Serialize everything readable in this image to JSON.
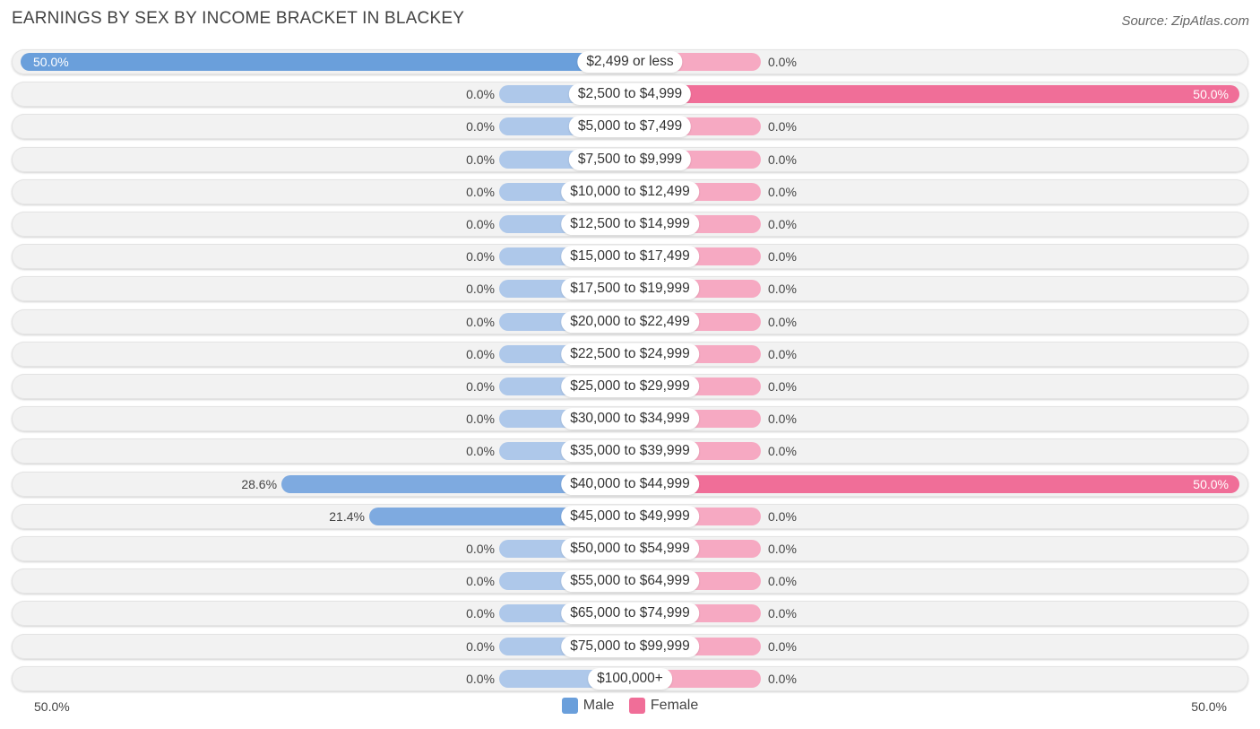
{
  "title": "EARNINGS BY SEX BY INCOME BRACKET IN BLACKEY",
  "source": "Source: ZipAtlas.com",
  "colors": {
    "male_light": "#aec8ea",
    "male_strong": "#6a9fdb",
    "female_light": "#f6a9c2",
    "female_strong": "#f06e98",
    "row_background": "#f2f2f2"
  },
  "chart_data": {
    "type": "bar",
    "orientation": "horizontal-diverging",
    "categories": [
      "$2,499 or less",
      "$2,500 to $4,999",
      "$5,000 to $7,499",
      "$7,500 to $9,999",
      "$10,000 to $12,499",
      "$12,500 to $14,999",
      "$15,000 to $17,499",
      "$17,500 to $19,999",
      "$20,000 to $22,499",
      "$22,500 to $24,999",
      "$25,000 to $29,999",
      "$30,000 to $34,999",
      "$35,000 to $39,999",
      "$40,000 to $44,999",
      "$45,000 to $49,999",
      "$50,000 to $54,999",
      "$55,000 to $64,999",
      "$65,000 to $74,999",
      "$75,000 to $99,999",
      "$100,000+"
    ],
    "series": [
      {
        "name": "Male",
        "values": [
          50.0,
          0.0,
          0.0,
          0.0,
          0.0,
          0.0,
          0.0,
          0.0,
          0.0,
          0.0,
          0.0,
          0.0,
          0.0,
          28.6,
          21.4,
          0.0,
          0.0,
          0.0,
          0.0,
          0.0
        ],
        "labels": [
          "50.0%",
          "0.0%",
          "0.0%",
          "0.0%",
          "0.0%",
          "0.0%",
          "0.0%",
          "0.0%",
          "0.0%",
          "0.0%",
          "0.0%",
          "0.0%",
          "0.0%",
          "28.6%",
          "21.4%",
          "0.0%",
          "0.0%",
          "0.0%",
          "0.0%",
          "0.0%"
        ]
      },
      {
        "name": "Female",
        "values": [
          0.0,
          50.0,
          0.0,
          0.0,
          0.0,
          0.0,
          0.0,
          0.0,
          0.0,
          0.0,
          0.0,
          0.0,
          0.0,
          50.0,
          0.0,
          0.0,
          0.0,
          0.0,
          0.0,
          0.0
        ],
        "labels": [
          "0.0%",
          "50.0%",
          "0.0%",
          "0.0%",
          "0.0%",
          "0.0%",
          "0.0%",
          "0.0%",
          "0.0%",
          "0.0%",
          "0.0%",
          "0.0%",
          "0.0%",
          "50.0%",
          "0.0%",
          "0.0%",
          "0.0%",
          "0.0%",
          "0.0%",
          "0.0%"
        ]
      }
    ],
    "xlim": [
      -50,
      50
    ],
    "axis_left_label": "50.0%",
    "axis_right_label": "50.0%",
    "legend": [
      "Male",
      "Female"
    ],
    "legend_position": "bottom-center",
    "grid": false
  }
}
